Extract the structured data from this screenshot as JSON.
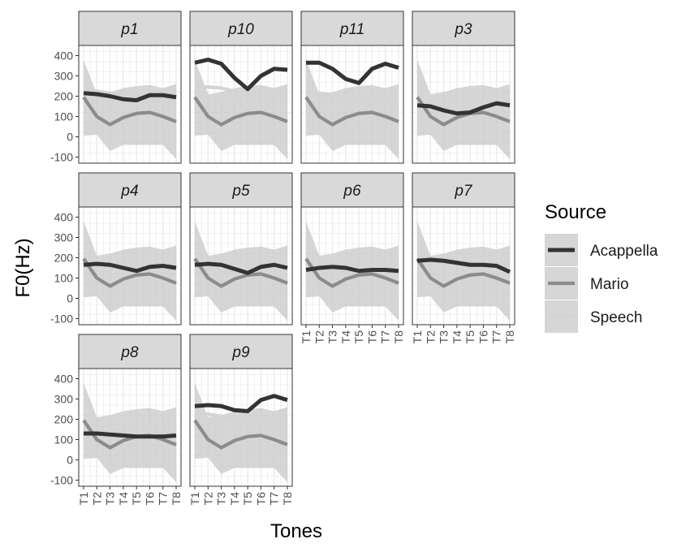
{
  "chart_data": {
    "type": "line",
    "xlabel": "Tones",
    "ylabel": "F0(Hz)",
    "x": [
      "T1",
      "T2",
      "T3",
      "T4",
      "T5",
      "T6",
      "T7",
      "T8"
    ],
    "ylim": [
      -130,
      450
    ],
    "yticks": [
      -100,
      0,
      100,
      200,
      300,
      400
    ],
    "grid": true,
    "legend": {
      "title": "Source",
      "position": "right",
      "entries": [
        "Acappella",
        "Mario",
        "Speech"
      ]
    },
    "colors": {
      "Acappella": "#333333",
      "Mario": "#8c8c8c",
      "Speech": "#d4d4d4",
      "ribbon": "#c8c8c8",
      "strip": "#d9d9d9",
      "grid": "#ebebeb"
    },
    "mario_band": {
      "lower": [
        5,
        10,
        -70,
        -40,
        -40,
        -40,
        -40,
        -110
      ],
      "upper": [
        380,
        210,
        220,
        240,
        250,
        255,
        240,
        260
      ]
    },
    "panels": [
      {
        "id": "p1",
        "series": {
          "Acappella": [
            215,
            210,
            200,
            185,
            180,
            205,
            205,
            195
          ],
          "Mario": [
            195,
            100,
            60,
            95,
            115,
            120,
            100,
            75
          ],
          "Speech": [
            225,
            225,
            215,
            205,
            195,
            180,
            185,
            195
          ]
        }
      },
      {
        "id": "p10",
        "series": {
          "Acappella": [
            365,
            380,
            360,
            290,
            235,
            300,
            335,
            330
          ],
          "Mario": [
            195,
            100,
            60,
            95,
            115,
            120,
            100,
            75
          ],
          "Speech": [
            245,
            245,
            240,
            225,
            205,
            200,
            210,
            220
          ]
        }
      },
      {
        "id": "p11",
        "series": {
          "Acappella": [
            365,
            365,
            335,
            285,
            265,
            335,
            360,
            340
          ],
          "Mario": [
            195,
            100,
            60,
            95,
            115,
            120,
            100,
            75
          ],
          "Speech": [
            215,
            215,
            205,
            195,
            185,
            180,
            185,
            200
          ]
        }
      },
      {
        "id": "p3",
        "series": {
          "Acappella": [
            155,
            150,
            130,
            115,
            120,
            145,
            165,
            155
          ],
          "Mario": [
            195,
            100,
            60,
            95,
            115,
            120,
            100,
            75
          ],
          "Speech": [
            170,
            160,
            145,
            130,
            120,
            115,
            115,
            125
          ]
        }
      },
      {
        "id": "p4",
        "series": {
          "Acappella": [
            165,
            170,
            165,
            150,
            135,
            155,
            160,
            150
          ],
          "Mario": [
            195,
            100,
            60,
            95,
            115,
            120,
            100,
            75
          ],
          "Speech": [
            175,
            170,
            160,
            145,
            135,
            130,
            135,
            145
          ]
        }
      },
      {
        "id": "p5",
        "series": {
          "Acappella": [
            165,
            170,
            165,
            145,
            125,
            155,
            165,
            150
          ],
          "Mario": [
            195,
            100,
            60,
            95,
            115,
            120,
            100,
            75
          ],
          "Speech": [
            155,
            150,
            140,
            125,
            115,
            110,
            115,
            125
          ]
        }
      },
      {
        "id": "p6",
        "series": {
          "Acappella": [
            140,
            150,
            155,
            150,
            135,
            140,
            140,
            135
          ],
          "Mario": [
            195,
            100,
            60,
            95,
            115,
            120,
            100,
            75
          ],
          "Speech": [
            130,
            135,
            135,
            130,
            125,
            120,
            125,
            130
          ]
        }
      },
      {
        "id": "p7",
        "series": {
          "Acappella": [
            185,
            190,
            185,
            175,
            165,
            165,
            160,
            130
          ],
          "Mario": [
            195,
            100,
            60,
            95,
            115,
            120,
            100,
            75
          ],
          "Speech": [
            195,
            200,
            195,
            185,
            175,
            175,
            170,
            165
          ]
        }
      },
      {
        "id": "p8",
        "series": {
          "Acappella": [
            130,
            130,
            125,
            120,
            115,
            115,
            115,
            120
          ],
          "Mario": [
            195,
            100,
            60,
            95,
            115,
            120,
            100,
            75
          ],
          "Speech": [
            125,
            125,
            120,
            120,
            120,
            120,
            125,
            140
          ]
        }
      },
      {
        "id": "p9",
        "series": {
          "Acappella": [
            265,
            270,
            265,
            245,
            240,
            295,
            315,
            295
          ],
          "Mario": [
            195,
            100,
            60,
            95,
            115,
            120,
            100,
            75
          ],
          "Speech": [
            230,
            225,
            215,
            200,
            190,
            185,
            190,
            200
          ]
        }
      }
    ]
  }
}
